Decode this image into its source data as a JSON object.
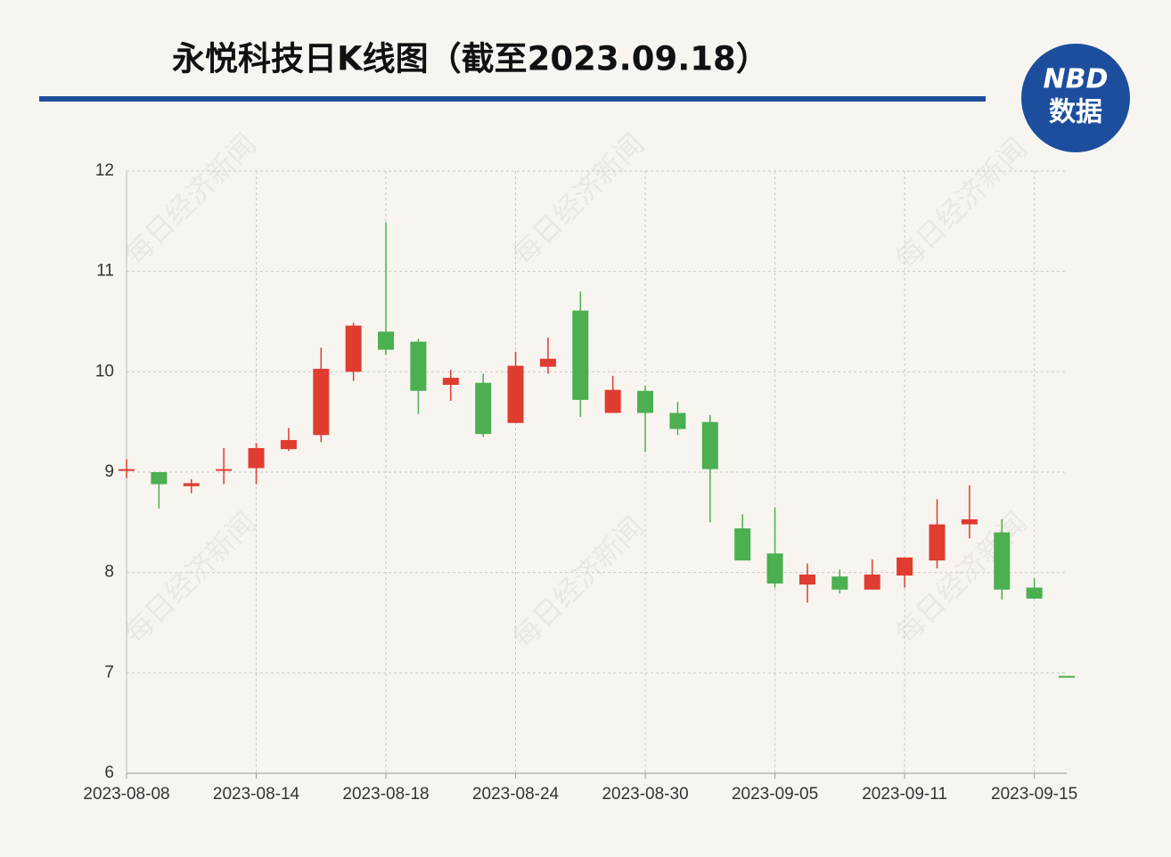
{
  "chart_data": {
    "type": "candlestick",
    "title": "永悦科技日K线图（截至2023.09.18）",
    "logo": {
      "line1": "NBD",
      "line2": "数据"
    },
    "watermark": "每日经济新闻",
    "categories": [
      "2023-08-08",
      null,
      null,
      null,
      "2023-08-14",
      null,
      null,
      null,
      "2023-08-18",
      null,
      null,
      null,
      "2023-08-24",
      null,
      null,
      null,
      "2023-08-30",
      null,
      null,
      null,
      "2023-09-05",
      null,
      null,
      null,
      "2023-09-11",
      null,
      null,
      null,
      "2023-09-15",
      null
    ],
    "open": [
      9.03,
      9.0,
      8.86,
      9.02,
      9.04,
      9.23,
      9.37,
      10.0,
      10.4,
      10.3,
      9.87,
      9.89,
      9.49,
      10.05,
      10.61,
      9.59,
      9.81,
      9.59,
      9.5,
      8.44,
      8.19,
      7.88,
      7.96,
      7.83,
      7.97,
      8.12,
      8.48,
      8.4,
      7.85,
      6.97
    ],
    "high": [
      9.13,
      9.0,
      8.93,
      9.24,
      9.29,
      9.44,
      10.24,
      10.49,
      11.49,
      10.33,
      10.02,
      9.98,
      10.2,
      10.34,
      10.8,
      9.96,
      9.86,
      9.7,
      9.57,
      8.58,
      8.65,
      8.09,
      8.03,
      8.13,
      8.15,
      8.73,
      8.87,
      8.53,
      7.94,
      6.97
    ],
    "low": [
      8.94,
      8.64,
      8.79,
      8.88,
      8.88,
      9.21,
      9.3,
      9.91,
      10.17,
      9.58,
      9.71,
      9.35,
      9.49,
      9.98,
      9.55,
      9.59,
      9.2,
      9.37,
      8.5,
      8.12,
      7.85,
      7.7,
      7.79,
      7.83,
      7.85,
      8.04,
      8.34,
      7.73,
      7.74,
      6.97
    ],
    "close": [
      9.03,
      8.88,
      8.89,
      9.03,
      9.24,
      9.32,
      10.03,
      10.46,
      10.22,
      9.81,
      9.94,
      9.38,
      10.06,
      10.13,
      9.72,
      9.82,
      9.59,
      9.43,
      9.03,
      8.12,
      7.89,
      7.98,
      7.83,
      7.98,
      8.15,
      8.48,
      8.53,
      7.83,
      7.74,
      6.97
    ],
    "up_color": "#e03c31",
    "down_color": "#4caf50",
    "ylim": [
      6,
      12
    ],
    "yticks": [
      6,
      7,
      8,
      9,
      10,
      11,
      12
    ],
    "grid": true
  }
}
